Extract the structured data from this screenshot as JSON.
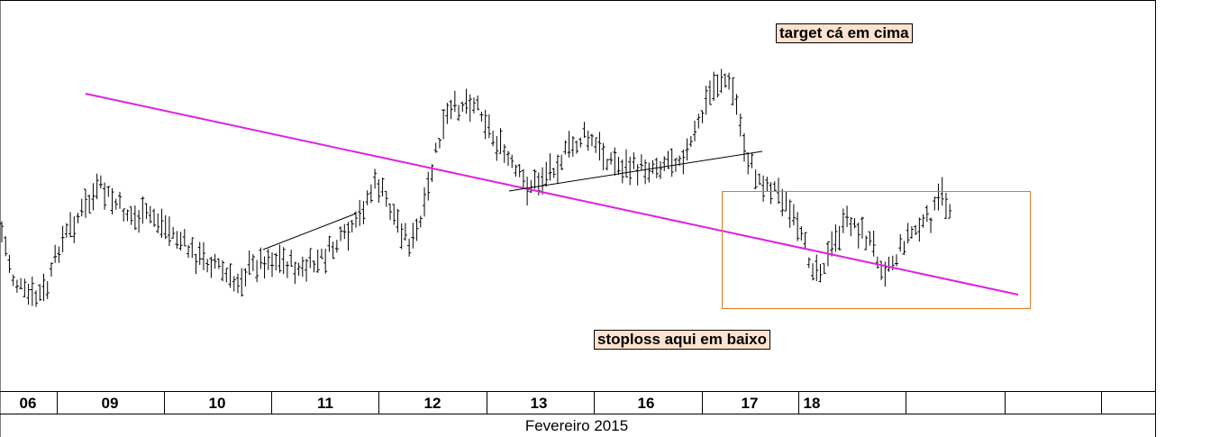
{
  "chart_data": {
    "type": "ohlc",
    "x_axis": {
      "day_labels": [
        "06",
        "09",
        "10",
        "11",
        "12",
        "13",
        "16",
        "17",
        "18"
      ],
      "extra_empty_cells": 3,
      "month_label": "Fevereiro 2015"
    },
    "annotations": {
      "target": "target cá em cima",
      "stoploss": "stoploss aqui em baixo"
    },
    "lines": [
      {
        "name": "main-downtrend",
        "color": "#e020e0"
      },
      {
        "name": "support-11",
        "color": "#000000"
      },
      {
        "name": "support-13-17",
        "color": "#000000"
      }
    ],
    "box": {
      "name": "range-box",
      "color": "#e07b20"
    },
    "price_path": [
      [
        0.0,
        0.62
      ],
      [
        0.01,
        0.76
      ],
      [
        0.02,
        0.81
      ],
      [
        0.03,
        0.82
      ],
      [
        0.04,
        0.79
      ],
      [
        0.05,
        0.66
      ],
      [
        0.065,
        0.58
      ],
      [
        0.085,
        0.49
      ],
      [
        0.1,
        0.54
      ],
      [
        0.115,
        0.58
      ],
      [
        0.13,
        0.57
      ],
      [
        0.15,
        0.63
      ],
      [
        0.17,
        0.7
      ],
      [
        0.185,
        0.71
      ],
      [
        0.2,
        0.78
      ],
      [
        0.215,
        0.73
      ],
      [
        0.23,
        0.7
      ],
      [
        0.245,
        0.71
      ],
      [
        0.26,
        0.74
      ],
      [
        0.275,
        0.71
      ],
      [
        0.29,
        0.66
      ],
      [
        0.305,
        0.62
      ],
      [
        0.315,
        0.53
      ],
      [
        0.325,
        0.47
      ],
      [
        0.34,
        0.57
      ],
      [
        0.355,
        0.66
      ],
      [
        0.365,
        0.58
      ],
      [
        0.375,
        0.4
      ],
      [
        0.385,
        0.28
      ],
      [
        0.395,
        0.24
      ],
      [
        0.405,
        0.22
      ],
      [
        0.415,
        0.24
      ],
      [
        0.425,
        0.33
      ],
      [
        0.435,
        0.38
      ],
      [
        0.445,
        0.44
      ],
      [
        0.455,
        0.48
      ],
      [
        0.465,
        0.47
      ],
      [
        0.475,
        0.43
      ],
      [
        0.49,
        0.38
      ],
      [
        0.505,
        0.33
      ],
      [
        0.52,
        0.38
      ],
      [
        0.535,
        0.42
      ],
      [
        0.55,
        0.43
      ],
      [
        0.565,
        0.42
      ],
      [
        0.58,
        0.4
      ],
      [
        0.595,
        0.38
      ],
      [
        0.605,
        0.29
      ],
      [
        0.615,
        0.19
      ],
      [
        0.625,
        0.15
      ],
      [
        0.635,
        0.2
      ],
      [
        0.645,
        0.38
      ],
      [
        0.655,
        0.46
      ],
      [
        0.665,
        0.48
      ],
      [
        0.675,
        0.5
      ],
      [
        0.685,
        0.58
      ],
      [
        0.695,
        0.66
      ],
      [
        0.705,
        0.73
      ],
      [
        0.715,
        0.71
      ],
      [
        0.725,
        0.63
      ],
      [
        0.735,
        0.58
      ],
      [
        0.745,
        0.62
      ],
      [
        0.755,
        0.66
      ],
      [
        0.765,
        0.73
      ],
      [
        0.775,
        0.7
      ],
      [
        0.785,
        0.63
      ],
      [
        0.795,
        0.61
      ],
      [
        0.805,
        0.58
      ],
      [
        0.815,
        0.51
      ],
      [
        0.822,
        0.55
      ]
    ]
  }
}
